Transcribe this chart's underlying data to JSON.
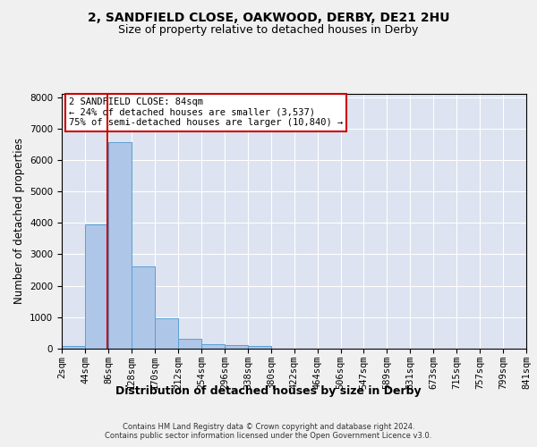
{
  "title_line1": "2, SANDFIELD CLOSE, OAKWOOD, DERBY, DE21 2HU",
  "title_line2": "Size of property relative to detached houses in Derby",
  "xlabel": "Distribution of detached houses by size in Derby",
  "ylabel": "Number of detached properties",
  "footer_line1": "Contains HM Land Registry data © Crown copyright and database right 2024.",
  "footer_line2": "Contains public sector information licensed under the Open Government Licence v3.0.",
  "annotation_title": "2 SANDFIELD CLOSE: 84sqm",
  "annotation_line1": "← 24% of detached houses are smaller (3,537)",
  "annotation_line2": "75% of semi-detached houses are larger (10,840) →",
  "property_size_sqm": 84,
  "bin_edges": [
    2,
    44,
    86,
    128,
    170,
    212,
    254,
    296,
    338,
    380,
    422,
    464,
    506,
    547,
    589,
    631,
    673,
    715,
    757,
    799,
    841
  ],
  "bin_counts": [
    80,
    3950,
    6560,
    2620,
    960,
    310,
    130,
    110,
    80,
    0,
    0,
    0,
    0,
    0,
    0,
    0,
    0,
    0,
    0,
    0
  ],
  "bar_color": "#aec6e8",
  "bar_edge_color": "#5a9fd4",
  "marker_color": "#cc0000",
  "plot_bg_color": "#dde3f0",
  "fig_bg_color": "#f0f0f0",
  "ylim": [
    0,
    8100
  ],
  "yticks": [
    0,
    1000,
    2000,
    3000,
    4000,
    5000,
    6000,
    7000,
    8000
  ],
  "grid_color": "#ffffff",
  "title_fontsize": 10,
  "subtitle_fontsize": 9,
  "axis_label_fontsize": 8.5,
  "tick_fontsize": 7.5,
  "annotation_fontsize": 7.5,
  "footer_fontsize": 6.0
}
